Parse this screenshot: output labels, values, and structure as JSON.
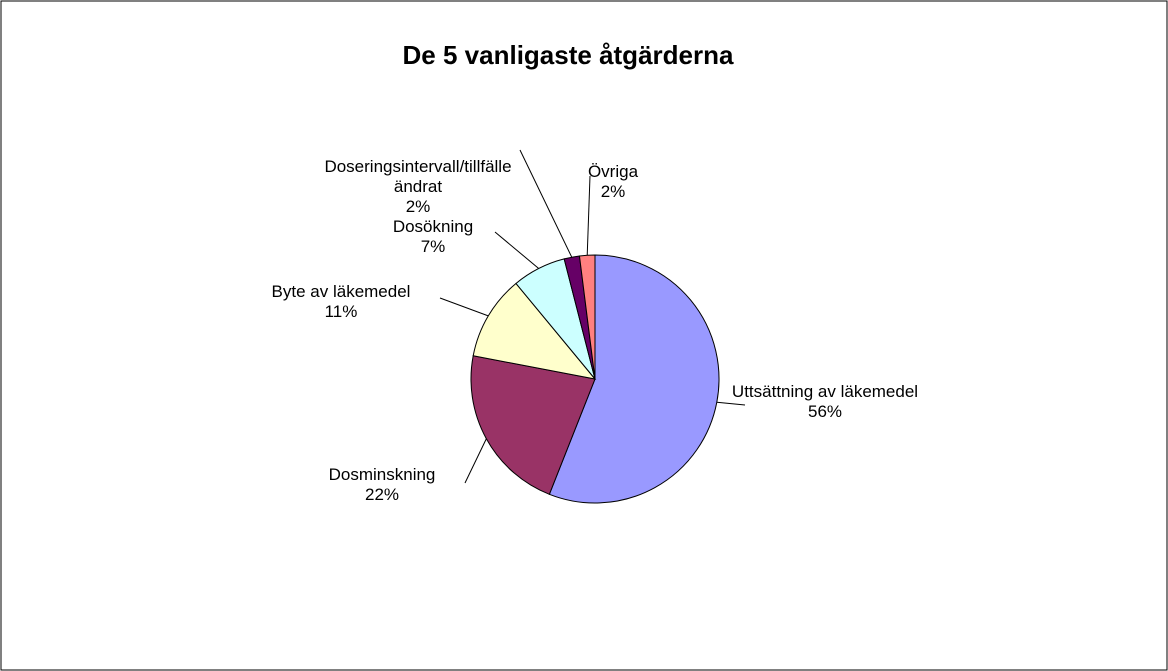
{
  "chart_data": {
    "type": "pie",
    "title": "De 5 vanligaste åtgärderna",
    "categories": [
      "Uttsättning av läkemedel",
      "Dosminskning",
      "Byte av läkemedel",
      "Dosökning",
      "Doseringsintervall/tillfälle ändrat",
      "Övriga"
    ],
    "values": [
      56,
      22,
      11,
      7,
      2,
      2
    ],
    "value_labels": [
      "56%",
      "22%",
      "11%",
      "7%",
      "2%",
      "2%"
    ],
    "colors": [
      "#9999ff",
      "#993366",
      "#ffffcc",
      "#ccffff",
      "#660066",
      "#ff8080"
    ]
  }
}
